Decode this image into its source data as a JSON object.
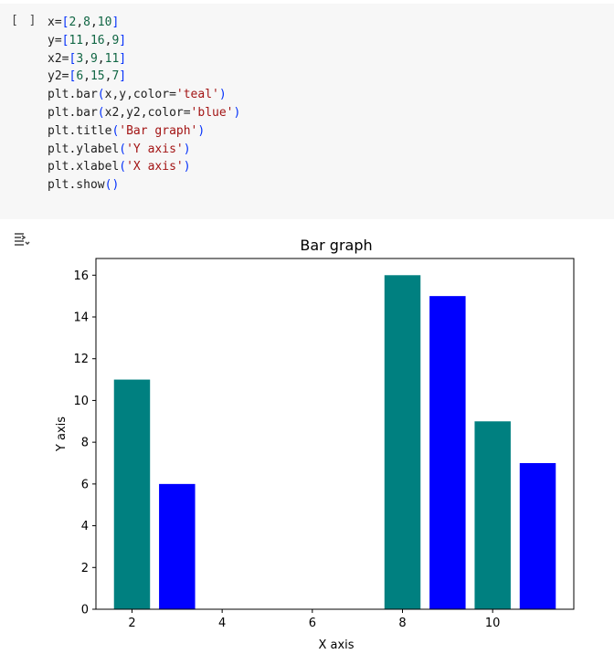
{
  "cell": {
    "run_label": "[ ]",
    "code_lines": [
      [
        {
          "t": "x=",
          "k": "p"
        },
        {
          "t": "[",
          "k": "b"
        },
        {
          "t": "2",
          "k": "n"
        },
        {
          "t": ",",
          "k": "p"
        },
        {
          "t": "8",
          "k": "n"
        },
        {
          "t": ",",
          "k": "p"
        },
        {
          "t": "10",
          "k": "n"
        },
        {
          "t": "]",
          "k": "b"
        }
      ],
      [
        {
          "t": "y=",
          "k": "p"
        },
        {
          "t": "[",
          "k": "b"
        },
        {
          "t": "11",
          "k": "n"
        },
        {
          "t": ",",
          "k": "p"
        },
        {
          "t": "16",
          "k": "n"
        },
        {
          "t": ",",
          "k": "p"
        },
        {
          "t": "9",
          "k": "n"
        },
        {
          "t": "]",
          "k": "b"
        }
      ],
      [
        {
          "t": "x2=",
          "k": "p"
        },
        {
          "t": "[",
          "k": "b"
        },
        {
          "t": "3",
          "k": "n"
        },
        {
          "t": ",",
          "k": "p"
        },
        {
          "t": "9",
          "k": "n"
        },
        {
          "t": ",",
          "k": "p"
        },
        {
          "t": "11",
          "k": "n"
        },
        {
          "t": "]",
          "k": "b"
        }
      ],
      [
        {
          "t": "y2=",
          "k": "p"
        },
        {
          "t": "[",
          "k": "b"
        },
        {
          "t": "6",
          "k": "n"
        },
        {
          "t": ",",
          "k": "p"
        },
        {
          "t": "15",
          "k": "n"
        },
        {
          "t": ",",
          "k": "p"
        },
        {
          "t": "7",
          "k": "n"
        },
        {
          "t": "]",
          "k": "b"
        }
      ],
      [
        {
          "t": "plt.bar",
          "k": "p"
        },
        {
          "t": "(",
          "k": "b"
        },
        {
          "t": "x,y,color=",
          "k": "p"
        },
        {
          "t": "'teal'",
          "k": "s"
        },
        {
          "t": ")",
          "k": "b"
        }
      ],
      [
        {
          "t": "plt.bar",
          "k": "p"
        },
        {
          "t": "(",
          "k": "b"
        },
        {
          "t": "x2,y2,color=",
          "k": "p"
        },
        {
          "t": "'blue'",
          "k": "s"
        },
        {
          "t": ")",
          "k": "b"
        }
      ],
      [
        {
          "t": "plt.title",
          "k": "p"
        },
        {
          "t": "(",
          "k": "b"
        },
        {
          "t": "'Bar graph'",
          "k": "s"
        },
        {
          "t": ")",
          "k": "b"
        }
      ],
      [
        {
          "t": "plt.ylabel",
          "k": "p"
        },
        {
          "t": "(",
          "k": "b"
        },
        {
          "t": "'Y axis'",
          "k": "s"
        },
        {
          "t": ")",
          "k": "b"
        }
      ],
      [
        {
          "t": "plt.xlabel",
          "k": "p"
        },
        {
          "t": "(",
          "k": "b"
        },
        {
          "t": "'X axis'",
          "k": "s"
        },
        {
          "t": ")",
          "k": "b"
        }
      ],
      [
        {
          "t": "plt.show",
          "k": "p"
        },
        {
          "t": "()",
          "k": "b"
        }
      ]
    ]
  },
  "output": {
    "icon": "output-toggle-icon"
  },
  "colors": {
    "teal": "#008080",
    "blue": "#0000ff"
  },
  "chart_data": {
    "type": "bar",
    "title": "Bar graph",
    "xlabel": "X axis",
    "ylabel": "Y axis",
    "xlim": [
      1.2,
      11.8
    ],
    "ylim": [
      0,
      16.8
    ],
    "xticks": [
      2,
      4,
      6,
      8,
      10
    ],
    "yticks": [
      0,
      2,
      4,
      6,
      8,
      10,
      12,
      14,
      16
    ],
    "bar_width": 0.8,
    "grid": false,
    "series": [
      {
        "x": [
          2,
          8,
          10
        ],
        "values": [
          11,
          16,
          9
        ],
        "color": "#008080"
      },
      {
        "x": [
          3,
          9,
          11
        ],
        "values": [
          6,
          15,
          7
        ],
        "color": "#0000ff"
      }
    ]
  }
}
